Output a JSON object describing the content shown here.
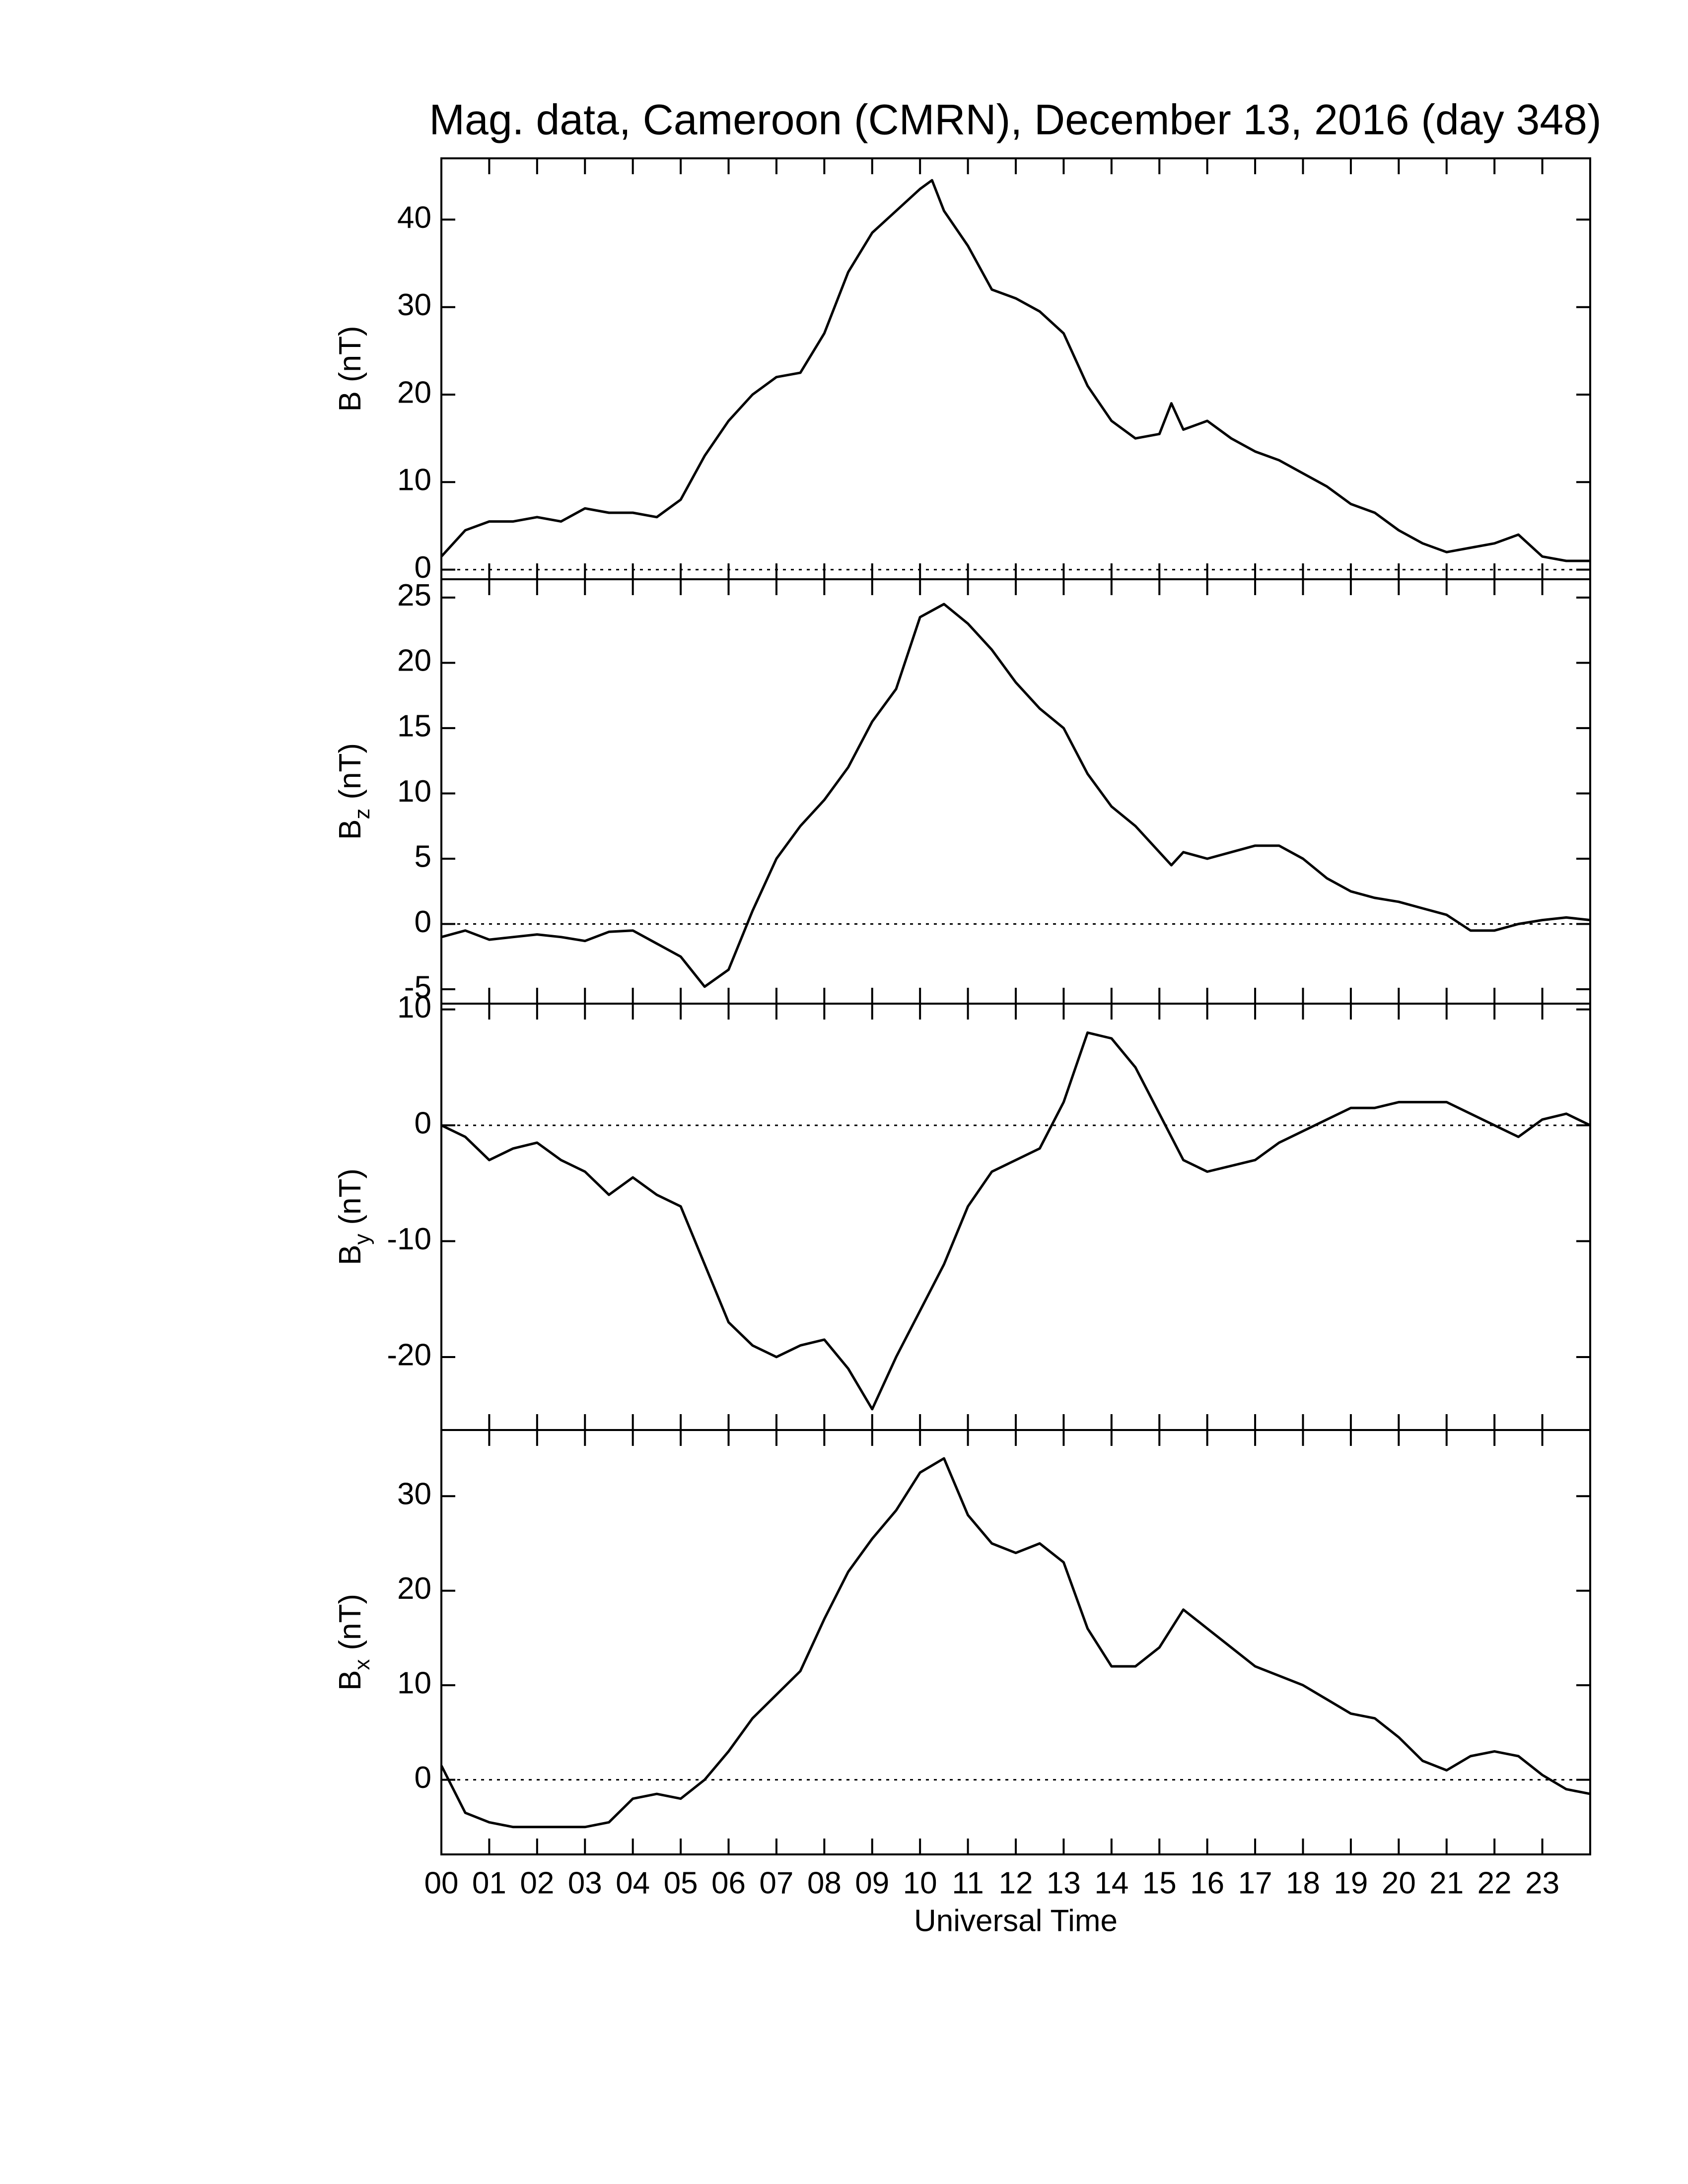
{
  "chart_data": [
    {
      "type": "line",
      "title": "Mag. data, Cameroon (CMRN), December 13, 2016 (day 348)",
      "ylabel": {
        "main": "B",
        "unit": "(nT)"
      },
      "xlim": [
        0,
        24
      ],
      "ylim": [
        -1.1,
        47
      ],
      "yticks": [
        0,
        10,
        20,
        30,
        40
      ],
      "zero_line": true,
      "color": "#000000",
      "x": [
        0,
        0.5,
        1,
        1.5,
        2,
        2.5,
        3,
        3.5,
        4,
        4.5,
        5,
        5.5,
        6,
        6.5,
        7,
        7.5,
        8,
        8.5,
        9,
        9.5,
        10,
        10.25,
        10.5,
        11,
        11.5,
        12,
        12.5,
        13,
        13.5,
        14,
        14.5,
        15,
        15.25,
        15.5,
        16,
        16.5,
        17,
        17.5,
        18,
        18.5,
        19,
        19.5,
        20,
        20.5,
        21,
        21.5,
        22,
        22.5,
        23,
        23.5,
        24
      ],
      "values": [
        1.5,
        4.5,
        5.5,
        5.5,
        6,
        5.5,
        7,
        6.5,
        6.5,
        6,
        8,
        13,
        17,
        20,
        22,
        22.5,
        27,
        34,
        38.5,
        41,
        43.5,
        44.5,
        41,
        37,
        32,
        31,
        29.5,
        27,
        21,
        17,
        15,
        15.5,
        19,
        16,
        17,
        15,
        13.5,
        12.5,
        11,
        9.5,
        7.5,
        6.5,
        4.5,
        3,
        2,
        2.5,
        3,
        4,
        1.5,
        1,
        1
      ]
    },
    {
      "type": "line",
      "ylabel": {
        "main": "B",
        "sub": "z",
        "unit": "(nT)"
      },
      "xlim": [
        0,
        24
      ],
      "ylim": [
        -6.1,
        26.4
      ],
      "yticks": [
        -5,
        0,
        5,
        10,
        15,
        20,
        25
      ],
      "zero_line": true,
      "color": "#000000",
      "x": [
        0,
        0.5,
        1,
        1.5,
        2,
        2.5,
        3,
        3.5,
        4,
        4.5,
        5,
        5.5,
        6,
        6.5,
        7,
        7.5,
        8,
        8.5,
        9,
        9.5,
        10,
        10.5,
        11,
        11.5,
        12,
        12.5,
        13,
        13.5,
        14,
        14.5,
        15,
        15.25,
        15.5,
        16,
        16.5,
        17,
        17.5,
        18,
        18.5,
        19,
        19.5,
        20,
        20.5,
        21,
        21.5,
        22,
        22.5,
        23,
        23.5,
        24
      ],
      "values": [
        -1,
        -0.5,
        -1.2,
        -1,
        -0.8,
        -1,
        -1.3,
        -0.6,
        -0.5,
        -1.5,
        -2.5,
        -4.8,
        -3.5,
        1,
        5,
        7.5,
        9.5,
        12,
        15.5,
        18,
        23.5,
        24.5,
        23,
        21,
        18.5,
        16.5,
        15,
        11.5,
        9,
        7.5,
        5.5,
        4.5,
        5.5,
        5,
        5.5,
        6,
        6,
        5,
        3.5,
        2.5,
        2,
        1.7,
        1.2,
        0.7,
        -0.5,
        -0.5,
        0,
        0.3,
        0.5,
        0.3
      ]
    },
    {
      "type": "line",
      "ylabel": {
        "main": "B",
        "sub": "y",
        "unit": "(nT)"
      },
      "xlim": [
        0,
        24
      ],
      "ylim": [
        -26.3,
        10.5
      ],
      "yticks": [
        -20,
        -10,
        0,
        10
      ],
      "zero_line": true,
      "color": "#000000",
      "x": [
        0,
        0.5,
        1,
        1.5,
        2,
        2.5,
        3,
        3.5,
        4,
        4.5,
        5,
        5.5,
        6,
        6.5,
        7,
        7.5,
        8,
        8.5,
        9,
        9.5,
        10,
        10.5,
        11,
        11.5,
        12,
        12.5,
        13,
        13.5,
        14,
        14.5,
        15,
        15.5,
        16,
        16.5,
        17,
        17.5,
        18,
        18.5,
        19,
        19.5,
        20,
        20.5,
        21,
        21.5,
        22,
        22.5,
        23,
        23.5,
        24
      ],
      "values": [
        0,
        -1,
        -3,
        -2,
        -1.5,
        -3,
        -4,
        -6,
        -4.5,
        -6,
        -7,
        -12,
        -17,
        -19,
        -20,
        -19,
        -18.5,
        -21,
        -24.5,
        -20,
        -16,
        -12,
        -7,
        -4,
        -3,
        -2,
        2,
        8,
        7.5,
        5,
        1,
        -3,
        -4,
        -3.5,
        -3,
        -1.5,
        -0.5,
        0.5,
        1.5,
        1.5,
        2,
        2,
        2,
        1,
        0,
        -1,
        0.5,
        1,
        0
      ]
    },
    {
      "type": "line",
      "ylabel": {
        "main": "B",
        "sub": "x",
        "unit": "(nT)"
      },
      "xlabel": "Universal Time",
      "xlim": [
        0,
        24
      ],
      "ylim": [
        -7.9,
        37
      ],
      "yticks": [
        0,
        10,
        20,
        30
      ],
      "zero_line": true,
      "color": "#000000",
      "xticks": [
        {
          "value": 0,
          "label": "00"
        },
        {
          "value": 1,
          "label": "01"
        },
        {
          "value": 2,
          "label": "02"
        },
        {
          "value": 3,
          "label": "03"
        },
        {
          "value": 4,
          "label": "04"
        },
        {
          "value": 5,
          "label": "05"
        },
        {
          "value": 6,
          "label": "06"
        },
        {
          "value": 7,
          "label": "07"
        },
        {
          "value": 8,
          "label": "08"
        },
        {
          "value": 9,
          "label": "09"
        },
        {
          "value": 10,
          "label": "10"
        },
        {
          "value": 11,
          "label": "11"
        },
        {
          "value": 12,
          "label": "12"
        },
        {
          "value": 13,
          "label": "13"
        },
        {
          "value": 14,
          "label": "14"
        },
        {
          "value": 15,
          "label": "15"
        },
        {
          "value": 16,
          "label": "16"
        },
        {
          "value": 17,
          "label": "17"
        },
        {
          "value": 18,
          "label": "18"
        },
        {
          "value": 19,
          "label": "19"
        },
        {
          "value": 20,
          "label": "20"
        },
        {
          "value": 21,
          "label": "21"
        },
        {
          "value": 22,
          "label": "22"
        },
        {
          "value": 23,
          "label": "23"
        }
      ],
      "x": [
        0,
        0.5,
        1,
        1.5,
        2,
        2.5,
        3,
        3.5,
        4,
        4.5,
        5,
        5.5,
        6,
        6.5,
        7,
        7.5,
        8,
        8.5,
        9,
        9.5,
        10,
        10.5,
        11,
        11.5,
        12,
        12.5,
        13,
        13.5,
        14,
        14.5,
        15,
        15.5,
        16,
        16.5,
        17,
        17.5,
        18,
        18.5,
        19,
        19.5,
        20,
        20.5,
        21,
        21.5,
        22,
        22.5,
        23,
        23.5,
        24
      ],
      "values": [
        1.5,
        -3.5,
        -4.5,
        -5,
        -5,
        -5,
        -5,
        -4.5,
        -2,
        -1.5,
        -2,
        0,
        3,
        6.5,
        9,
        11.5,
        17,
        22,
        25.5,
        28.5,
        32.5,
        34,
        28,
        25,
        24,
        25,
        23,
        16,
        12,
        12,
        14,
        18,
        16,
        14,
        12,
        11,
        10,
        8.5,
        7,
        6.5,
        4.5,
        2,
        1,
        2.5,
        3,
        2.5,
        0.5,
        -1,
        -1.5
      ]
    }
  ]
}
